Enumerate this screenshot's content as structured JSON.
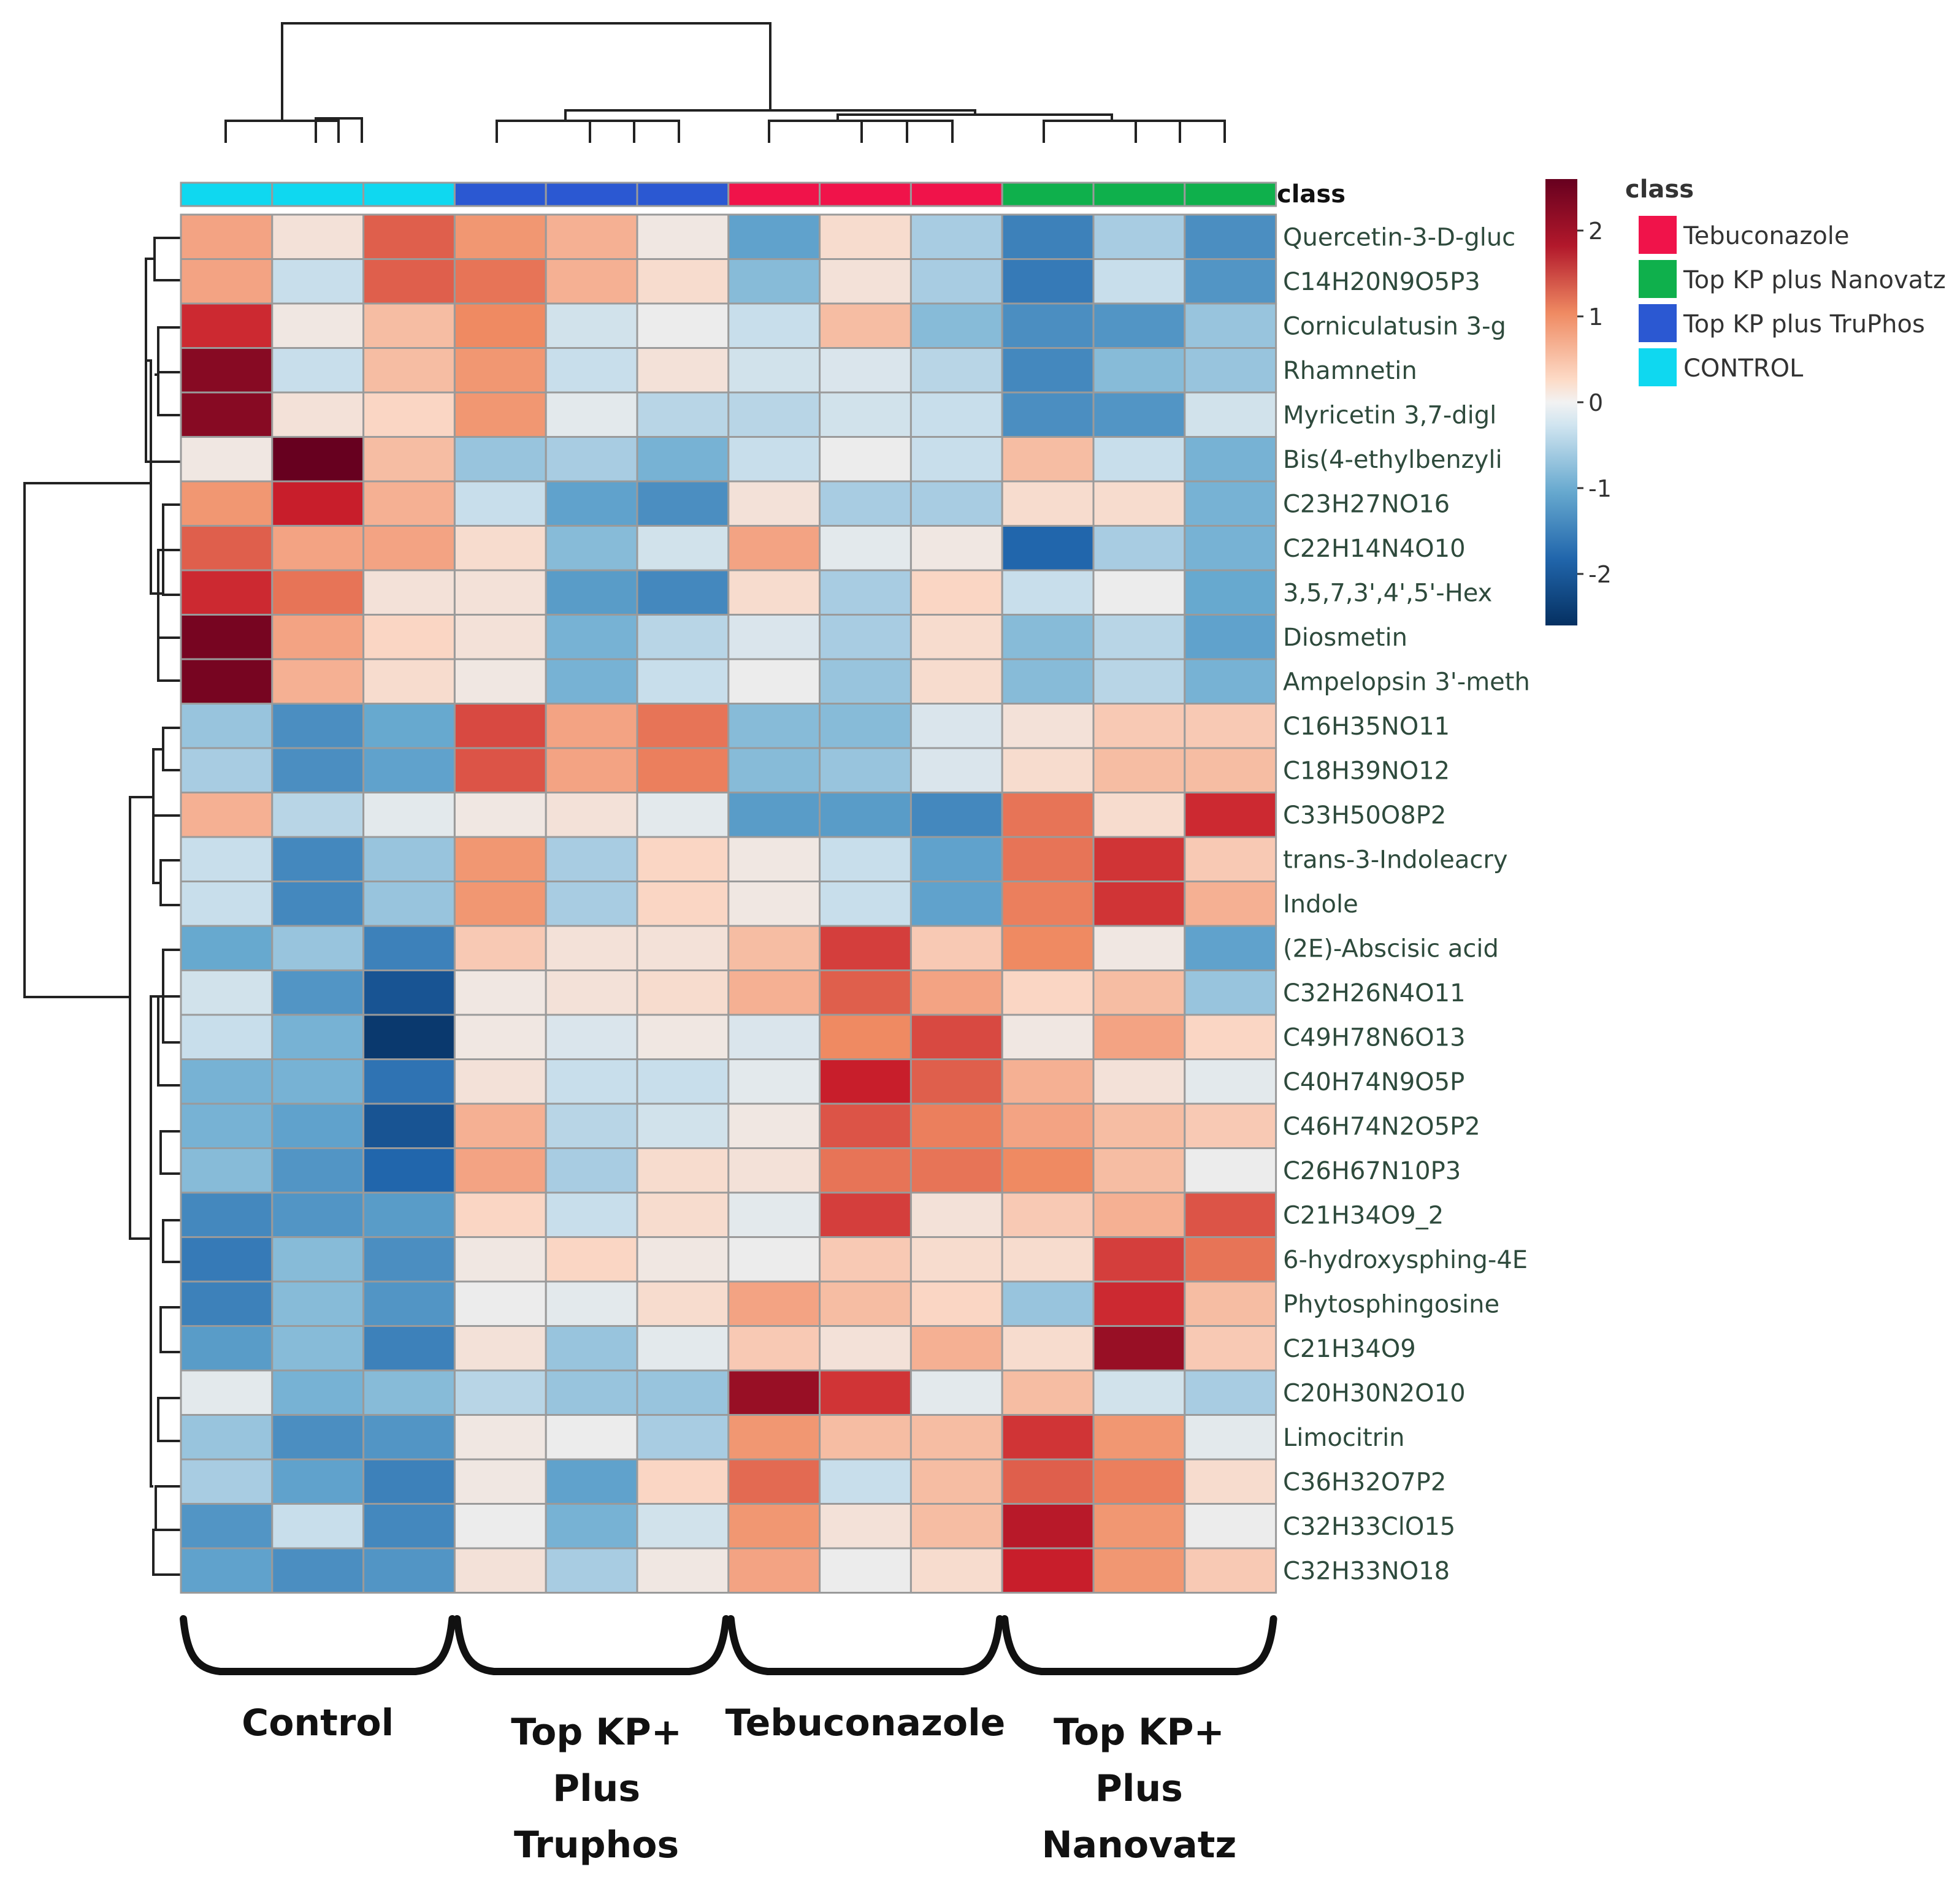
{
  "chart_data": {
    "type": "heatmap",
    "title": "",
    "class_header": "class",
    "columns": [
      {
        "class": "CONTROL"
      },
      {
        "class": "CONTROL"
      },
      {
        "class": "CONTROL"
      },
      {
        "class": "Top KP plus TruPhos"
      },
      {
        "class": "Top KP plus TruPhos"
      },
      {
        "class": "Top KP plus TruPhos"
      },
      {
        "class": "Tebuconazole"
      },
      {
        "class": "Tebuconazole"
      },
      {
        "class": "Tebuconazole"
      },
      {
        "class": "Top KP plus Nanovatz"
      },
      {
        "class": "Top KP plus Nanovatz"
      },
      {
        "class": "Top KP plus Nanovatz"
      }
    ],
    "rows": [
      "Quercetin-3-D-gluc",
      "C14H20N9O5P3",
      "Corniculatusin 3-g",
      "Rhamnetin",
      "Myricetin 3,7-digl",
      "Bis(4-ethylbenzyli",
      "C23H27NO16",
      "C22H14N4O10",
      "3,5,7,3',4',5'-Hex",
      "Diosmetin",
      "Ampelopsin 3'-meth",
      "C16H35NO11",
      "C18H39NO12",
      "C33H50O8P2",
      "trans-3-Indoleacry",
      "Indole",
      "(2E)-Abscisic acid",
      "C32H26N4O11",
      "C49H78N6O13",
      "C40H74N9O5P",
      "C46H74N2O5P2",
      "C26H67N10P3",
      "C21H34O9_2",
      "6-hydroxysphing-4E",
      "Phytosphingosine",
      "C21H34O9",
      "C20H30N2O10",
      "Limocitrin",
      "C36H32O7P2",
      "C32H33ClO15",
      "C32H33NO18"
    ],
    "values": [
      [
        0.8,
        0.2,
        1.4,
        0.9,
        0.7,
        0.1,
        -1.1,
        0.3,
        -0.6,
        -1.6,
        -0.6,
        -1.4
      ],
      [
        0.8,
        -0.4,
        1.4,
        1.2,
        0.7,
        0.3,
        -0.8,
        0.2,
        -0.6,
        -1.7,
        -0.4,
        -1.3
      ],
      [
        1.9,
        0.1,
        0.6,
        1.0,
        -0.3,
        0.0,
        -0.4,
        0.6,
        -0.8,
        -1.4,
        -1.3,
        -0.7
      ],
      [
        2.4,
        -0.4,
        0.6,
        0.9,
        -0.4,
        0.2,
        -0.3,
        -0.2,
        -0.5,
        -1.5,
        -0.8,
        -0.7
      ],
      [
        2.4,
        0.2,
        0.4,
        0.9,
        -0.1,
        -0.5,
        -0.5,
        -0.3,
        -0.4,
        -1.4,
        -1.3,
        -0.3
      ],
      [
        0.1,
        2.6,
        0.6,
        -0.7,
        -0.6,
        -0.9,
        -0.4,
        0.0,
        -0.4,
        0.6,
        -0.4,
        -0.9
      ],
      [
        0.9,
        2.0,
        0.7,
        -0.4,
        -1.1,
        -1.4,
        0.2,
        -0.6,
        -0.6,
        0.3,
        0.3,
        -0.9
      ],
      [
        1.4,
        0.8,
        0.8,
        0.3,
        -0.8,
        -0.3,
        0.8,
        -0.1,
        0.1,
        -2.0,
        -0.6,
        -0.9
      ],
      [
        1.9,
        1.2,
        0.2,
        0.2,
        -1.2,
        -1.5,
        0.3,
        -0.6,
        0.4,
        -0.4,
        0.0,
        -1.0
      ],
      [
        2.5,
        0.8,
        0.4,
        0.2,
        -0.9,
        -0.5,
        -0.2,
        -0.6,
        0.3,
        -0.8,
        -0.5,
        -1.1
      ],
      [
        2.5,
        0.7,
        0.3,
        0.1,
        -0.9,
        -0.4,
        0.0,
        -0.7,
        0.3,
        -0.8,
        -0.5,
        -0.9
      ],
      [
        -0.7,
        -1.4,
        -1.0,
        1.6,
        0.8,
        1.2,
        -0.8,
        -0.8,
        -0.2,
        0.2,
        0.5,
        0.5
      ],
      [
        -0.6,
        -1.4,
        -1.1,
        1.5,
        0.8,
        1.1,
        -0.8,
        -0.7,
        -0.2,
        0.3,
        0.6,
        0.6
      ],
      [
        0.7,
        -0.5,
        -0.1,
        0.1,
        0.2,
        -0.1,
        -1.2,
        -1.2,
        -1.5,
        1.2,
        0.3,
        1.9
      ],
      [
        -0.4,
        -1.5,
        -0.7,
        0.9,
        -0.6,
        0.4,
        0.1,
        -0.4,
        -1.1,
        1.2,
        1.8,
        0.5
      ],
      [
        -0.4,
        -1.5,
        -0.7,
        0.9,
        -0.6,
        0.4,
        0.1,
        -0.4,
        -1.1,
        1.1,
        1.8,
        0.7
      ],
      [
        -1.0,
        -0.7,
        -1.6,
        0.5,
        0.2,
        0.2,
        0.6,
        1.7,
        0.5,
        1.0,
        0.1,
        -1.1
      ],
      [
        -0.3,
        -1.3,
        -2.2,
        0.1,
        0.2,
        0.3,
        0.7,
        1.4,
        0.8,
        0.4,
        0.6,
        -0.7
      ],
      [
        -0.4,
        -0.9,
        -2.5,
        0.1,
        -0.2,
        0.1,
        -0.2,
        1.0,
        1.6,
        0.1,
        0.8,
        0.4
      ],
      [
        -0.9,
        -0.9,
        -1.8,
        0.2,
        -0.4,
        -0.4,
        -0.1,
        2.0,
        1.4,
        0.7,
        0.2,
        -0.1
      ],
      [
        -0.9,
        -1.1,
        -2.2,
        0.7,
        -0.5,
        -0.3,
        0.1,
        1.5,
        1.1,
        0.8,
        0.6,
        0.5
      ],
      [
        -0.8,
        -1.3,
        -2.0,
        0.8,
        -0.6,
        0.3,
        0.2,
        1.2,
        1.2,
        1.0,
        0.6,
        0.0
      ],
      [
        -1.5,
        -1.3,
        -1.2,
        0.4,
        -0.4,
        0.3,
        -0.1,
        1.7,
        0.2,
        0.5,
        0.7,
        1.5
      ],
      [
        -1.7,
        -0.8,
        -1.4,
        0.1,
        0.4,
        0.1,
        0.0,
        0.5,
        0.3,
        0.3,
        1.7,
        1.2
      ],
      [
        -1.6,
        -0.8,
        -1.3,
        0.0,
        -0.1,
        0.3,
        0.8,
        0.6,
        0.4,
        -0.7,
        1.9,
        0.6
      ],
      [
        -1.2,
        -0.8,
        -1.6,
        0.2,
        -0.7,
        -0.1,
        0.5,
        0.2,
        0.7,
        0.3,
        2.3,
        0.5
      ],
      [
        -0.1,
        -0.9,
        -0.8,
        -0.5,
        -0.7,
        -0.7,
        2.3,
        1.8,
        -0.1,
        0.6,
        -0.3,
        -0.6
      ],
      [
        -0.7,
        -1.4,
        -1.3,
        0.1,
        0.0,
        -0.6,
        0.9,
        0.6,
        0.6,
        1.8,
        0.9,
        -0.1
      ],
      [
        -0.6,
        -1.1,
        -1.6,
        0.1,
        -1.1,
        0.4,
        1.3,
        -0.4,
        0.6,
        1.4,
        1.1,
        0.3
      ],
      [
        -1.3,
        -0.4,
        -1.5,
        0.0,
        -0.9,
        -0.3,
        0.9,
        0.2,
        0.6,
        2.1,
        0.9,
        0.0
      ],
      [
        -1.1,
        -1.4,
        -1.3,
        0.2,
        -0.6,
        0.1,
        0.8,
        0.0,
        0.3,
        2.0,
        0.9,
        0.5
      ]
    ],
    "colorbar": {
      "min": -2.6,
      "max": 2.6,
      "ticks": [
        "2",
        "1",
        "0",
        "-1",
        "-2"
      ]
    },
    "legend": {
      "title": "class",
      "entries": [
        {
          "label": "Tebuconazole",
          "color": "#f0134a"
        },
        {
          "label": "Top KP plus Nanovatz",
          "color": "#0fb04c"
        },
        {
          "label": "Top KP plus TruPhos",
          "color": "#2b58d2"
        },
        {
          "label": "CONTROL",
          "color": "#0fd8f0"
        }
      ]
    },
    "group_labels": [
      {
        "lines": [
          "Control"
        ]
      },
      {
        "lines": [
          "Top KP+",
          "Plus",
          "Truphos"
        ]
      },
      {
        "lines": [
          "Tebuconazole"
        ]
      },
      {
        "lines": [
          "Top KP+",
          "Plus",
          "Nanovatz"
        ]
      }
    ]
  }
}
